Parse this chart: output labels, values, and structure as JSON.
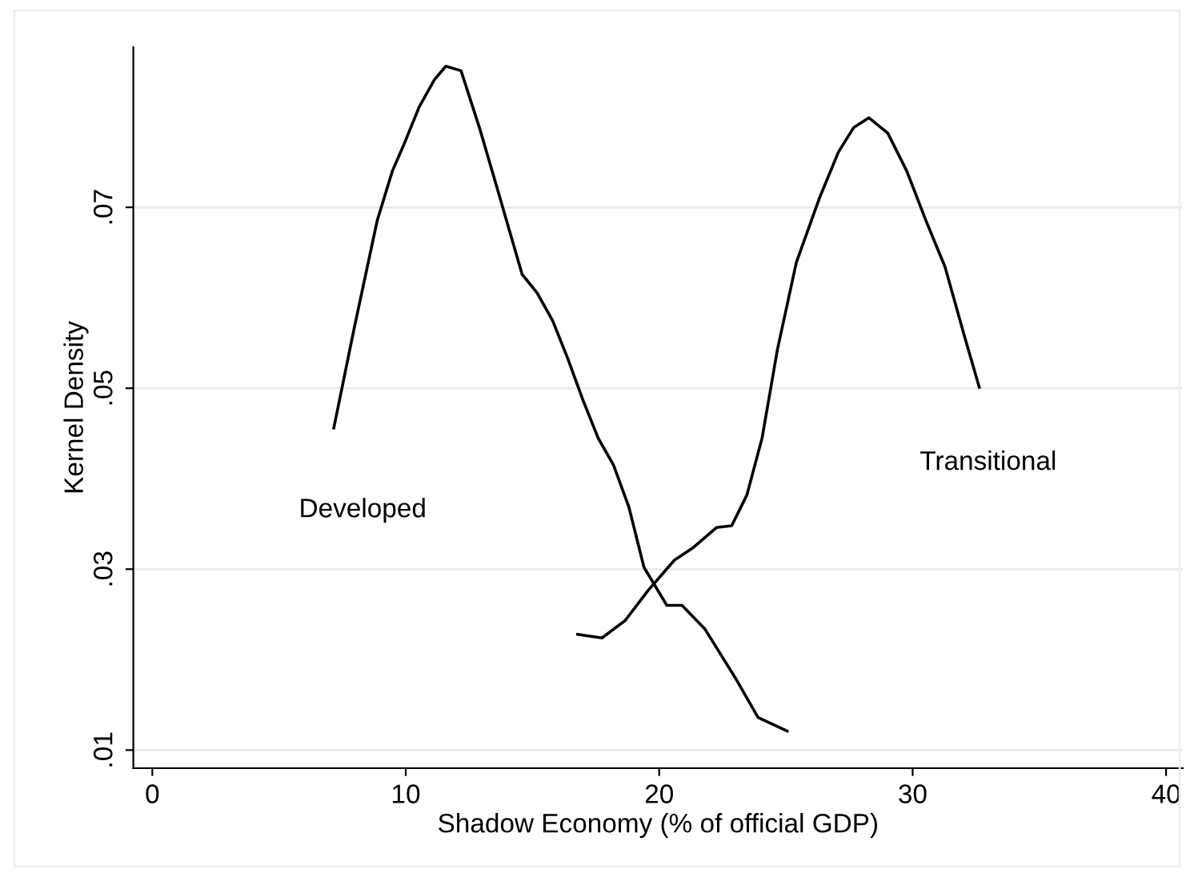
{
  "chart_data": {
    "type": "line",
    "xlabel": "Shadow Economy (% of official GDP)",
    "ylabel": "Kernel Density",
    "xlim": [
      -0.75,
      40.66
    ],
    "ylim": [
      0.008,
      0.0877
    ],
    "xticks": [
      0,
      10,
      20,
      30,
      40
    ],
    "yticks": [
      {
        "value": 0.01,
        "label": ".01"
      },
      {
        "value": 0.03,
        "label": ".03"
      },
      {
        "value": 0.05,
        "label": ".05"
      },
      {
        "value": 0.07,
        "label": ".07"
      }
    ],
    "grid": "y",
    "marker": "none",
    "line_style": "solid",
    "series": [
      {
        "name": "Developed",
        "color": "#000000",
        "x": [
          7.16,
          7.97,
          8.87,
          9.47,
          9.92,
          10.53,
          11.13,
          11.58,
          12.18,
          12.93,
          13.68,
          14.59,
          15.19,
          15.79,
          16.39,
          16.99,
          17.59,
          18.2,
          18.8,
          19.4,
          20.3,
          20.9,
          21.8,
          23.0,
          23.9,
          25.05
        ],
        "values": [
          0.0456,
          0.0567,
          0.0685,
          0.074,
          0.0769,
          0.0811,
          0.0841,
          0.0856,
          0.0851,
          0.0786,
          0.0714,
          0.0626,
          0.0605,
          0.0575,
          0.0533,
          0.0487,
          0.0445,
          0.0415,
          0.0369,
          0.0302,
          0.026,
          0.026,
          0.0234,
          0.018,
          0.0136,
          0.0121
        ]
      },
      {
        "name": "Transitional",
        "color": "#000000",
        "x": [
          16.78,
          17.74,
          18.65,
          19.55,
          20.6,
          21.35,
          22.26,
          22.86,
          23.46,
          24.06,
          24.66,
          25.41,
          26.32,
          27.07,
          27.67,
          28.27,
          29.02,
          29.77,
          30.53,
          31.28,
          32.03,
          32.63
        ],
        "values": [
          0.0228,
          0.0224,
          0.0243,
          0.0276,
          0.031,
          0.0324,
          0.0346,
          0.0348,
          0.0382,
          0.0445,
          0.0542,
          0.0639,
          0.071,
          0.0761,
          0.0788,
          0.0799,
          0.0782,
          0.074,
          0.0685,
          0.0634,
          0.0559,
          0.0501
        ]
      }
    ]
  }
}
